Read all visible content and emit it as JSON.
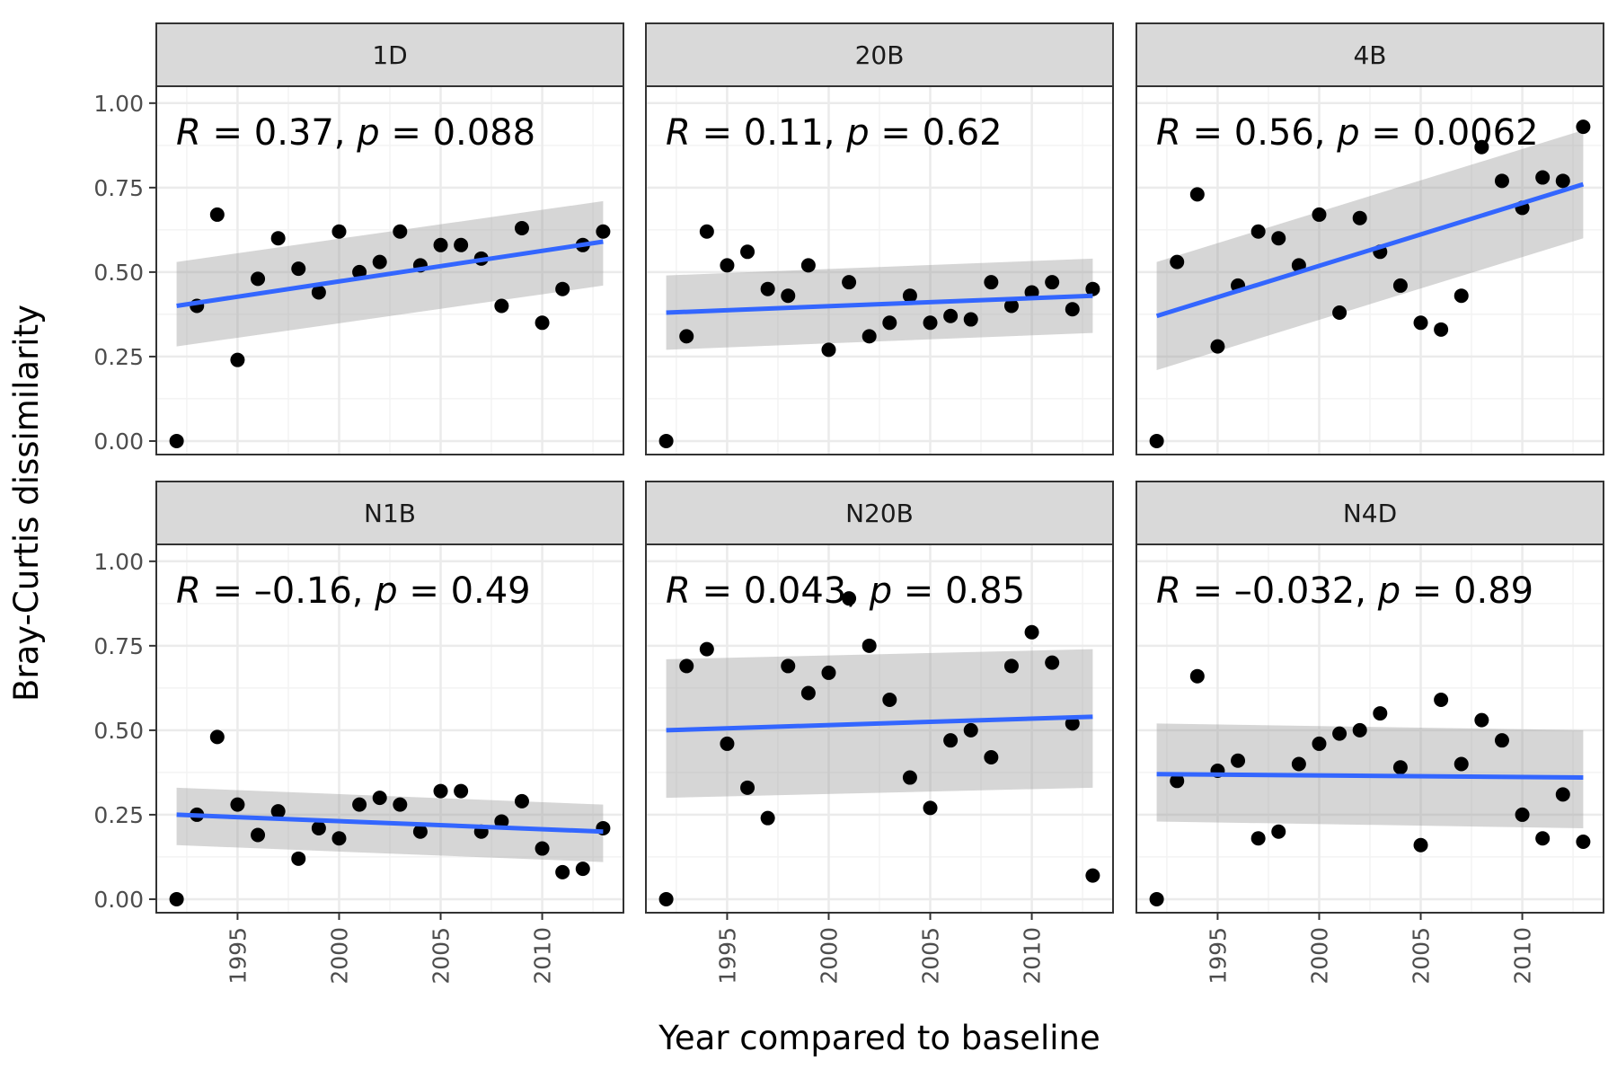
{
  "chart_data": {
    "type": "scatter",
    "title": "",
    "xlabel": "Year compared to baseline",
    "ylabel": "Bray-Curtis dissimilarity",
    "xlim": [
      1991,
      2014
    ],
    "ylim": [
      -0.04,
      1.05
    ],
    "x_ticks": [
      1995,
      2000,
      2005,
      2010
    ],
    "y_ticks": [
      0.0,
      0.25,
      0.5,
      0.75,
      1.0
    ],
    "y_tick_labels": [
      "0.00",
      "0.25",
      "0.50",
      "0.75",
      "1.00"
    ],
    "grid": true,
    "colors": {
      "points": "#000000",
      "fit_line": "#3366ff",
      "ribbon": "#999999",
      "strip_fill": "#d9d9d9",
      "panel_border": "#333333",
      "grid": "#ebebeb"
    },
    "x": [
      1992,
      1993,
      1994,
      1995,
      1996,
      1997,
      1998,
      1999,
      2000,
      2001,
      2002,
      2003,
      2004,
      2005,
      2006,
      2007,
      2008,
      2009,
      2010,
      2011,
      2012,
      2013
    ],
    "panels": [
      {
        "name": "1D",
        "stat_R": "0.37",
        "stat_p": "0.088",
        "values": [
          0.0,
          0.4,
          0.67,
          0.24,
          0.48,
          0.6,
          0.51,
          0.44,
          0.62,
          0.5,
          0.53,
          0.62,
          0.52,
          0.58,
          0.58,
          0.54,
          0.4,
          0.63,
          0.35,
          0.45,
          0.58,
          0.62
        ],
        "fit": [
          0.4,
          0.59
        ],
        "ci_lower": [
          0.28,
          0.46
        ],
        "ci_upper": [
          0.53,
          0.71
        ]
      },
      {
        "name": "20B",
        "stat_R": "0.11",
        "stat_p": "0.62",
        "values": [
          0.0,
          0.31,
          0.62,
          0.52,
          0.56,
          0.45,
          0.43,
          0.52,
          0.27,
          0.47,
          0.31,
          0.35,
          0.43,
          0.35,
          0.37,
          0.36,
          0.47,
          0.4,
          0.44,
          0.47,
          0.39,
          0.45
        ],
        "fit": [
          0.38,
          0.43
        ],
        "ci_lower": [
          0.27,
          0.32
        ],
        "ci_upper": [
          0.49,
          0.54
        ]
      },
      {
        "name": "4B",
        "stat_R": "0.56",
        "stat_p": "0.0062",
        "values": [
          0.0,
          0.53,
          0.73,
          0.28,
          0.46,
          0.62,
          0.6,
          0.52,
          0.67,
          0.38,
          0.66,
          0.56,
          0.46,
          0.35,
          0.33,
          0.43,
          0.87,
          0.77,
          0.69,
          0.78,
          0.77,
          0.93
        ],
        "fit": [
          0.37,
          0.76
        ],
        "ci_lower": [
          0.21,
          0.6
        ],
        "ci_upper": [
          0.53,
          0.92
        ]
      },
      {
        "name": "N1B",
        "stat_R": "–0.16",
        "stat_p": "0.49",
        "values": [
          0.0,
          0.25,
          0.48,
          0.28,
          0.19,
          0.26,
          0.12,
          0.21,
          0.18,
          0.28,
          0.3,
          0.28,
          0.2,
          0.32,
          0.32,
          0.2,
          0.23,
          0.29,
          0.15,
          0.08,
          0.09,
          0.21
        ],
        "fit": [
          0.25,
          0.2
        ],
        "ci_lower": [
          0.16,
          0.11
        ],
        "ci_upper": [
          0.33,
          0.28
        ]
      },
      {
        "name": "N20B",
        "stat_R": "0.043",
        "stat_p": "0.85",
        "values": [
          0.0,
          0.69,
          0.74,
          0.46,
          0.33,
          0.24,
          0.69,
          0.61,
          0.67,
          0.89,
          0.75,
          0.59,
          0.36,
          0.27,
          0.47,
          0.5,
          0.42,
          0.69,
          0.79,
          0.7,
          0.52,
          0.07
        ],
        "fit": [
          0.5,
          0.54
        ],
        "ci_lower": [
          0.3,
          0.33
        ],
        "ci_upper": [
          0.71,
          0.74
        ]
      },
      {
        "name": "N4D",
        "stat_R": "–0.032",
        "stat_p": "0.89",
        "values": [
          0.0,
          0.35,
          0.66,
          0.38,
          0.41,
          0.18,
          0.2,
          0.4,
          0.46,
          0.49,
          0.5,
          0.55,
          0.39,
          0.16,
          0.59,
          0.4,
          0.53,
          0.47,
          0.25,
          0.18,
          0.31,
          0.17
        ],
        "fit": [
          0.37,
          0.36
        ],
        "ci_lower": [
          0.23,
          0.21
        ],
        "ci_upper": [
          0.52,
          0.5
        ]
      }
    ]
  }
}
